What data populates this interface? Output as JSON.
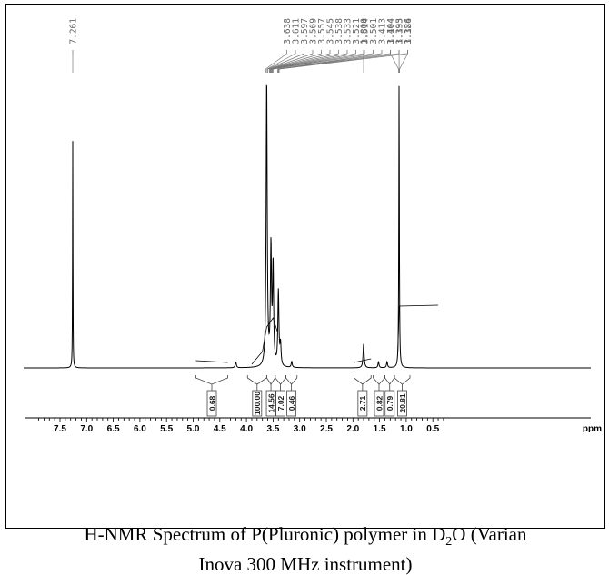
{
  "chart_data": {
    "type": "line",
    "title": "",
    "xlabel": "ppm",
    "x_reversed": true,
    "xlim": [
      0.25,
      7.95
    ],
    "x_ticks": [
      "7.5",
      "7.0",
      "6.5",
      "6.0",
      "5.5",
      "5.0",
      "4.5",
      "4.0",
      "3.5",
      "3.0",
      "2.5",
      "2.0",
      "1.5",
      "1.0",
      "0.5"
    ],
    "x_tick_values": [
      7.5,
      7.0,
      6.5,
      6.0,
      5.5,
      5.0,
      4.5,
      4.0,
      3.5,
      3.0,
      2.5,
      2.0,
      1.5,
      1.0,
      0.5
    ],
    "x_unit": "ppm",
    "peak_label_groups": [
      {
        "labels": [
          "7.261"
        ],
        "shifts": [
          7.261
        ]
      },
      {
        "labels": [
          "3.638",
          "3.611",
          "3.597",
          "3.569",
          "3.557",
          "3.545",
          "3.538",
          "3.533",
          "3.521",
          "3.514",
          "3.501",
          "3.413",
          "3.404",
          "3.395",
          "3.386"
        ],
        "shifts": [
          3.638,
          3.611,
          3.597,
          3.569,
          3.557,
          3.545,
          3.538,
          3.533,
          3.521,
          3.514,
          3.501,
          3.413,
          3.404,
          3.395,
          3.386
        ]
      },
      {
        "labels": [
          "1.800"
        ],
        "shifts": [
          1.8
        ]
      },
      {
        "labels": [
          "1.144",
          "1.133",
          "1.124"
        ],
        "shifts": [
          1.144,
          1.133,
          1.124
        ]
      }
    ],
    "peaks": [
      {
        "x": 7.261,
        "intensity": 0.76
      },
      {
        "x": 3.62,
        "intensity": 0.96
      },
      {
        "x": 3.54,
        "intensity": 0.39
      },
      {
        "x": 3.5,
        "intensity": 0.33
      },
      {
        "x": 3.4,
        "intensity": 0.25
      },
      {
        "x": 3.36,
        "intensity": 0.07
      },
      {
        "x": 4.2,
        "intensity": 0.02
      },
      {
        "x": 3.15,
        "intensity": 0.02
      },
      {
        "x": 1.8,
        "intensity": 0.08
      },
      {
        "x": 1.52,
        "intensity": 0.02
      },
      {
        "x": 1.36,
        "intensity": 0.02
      },
      {
        "x": 1.134,
        "intensity": 0.96
      }
    ],
    "integrals": [
      {
        "label": "0.68",
        "from": 4.95,
        "to": 4.35
      },
      {
        "label": "100.00",
        "from": 3.98,
        "to": 3.62
      },
      {
        "label": "14.56",
        "from": 3.62,
        "to": 3.46
      },
      {
        "label": "7.02",
        "from": 3.46,
        "to": 3.26
      },
      {
        "label": "0.46",
        "from": 3.26,
        "to": 3.05
      },
      {
        "label": "2.71",
        "from": 1.98,
        "to": 1.66
      },
      {
        "label": "0.82",
        "from": 1.62,
        "to": 1.4
      },
      {
        "label": "0.79",
        "from": 1.4,
        "to": 1.22
      },
      {
        "label": "20.81",
        "from": 1.22,
        "to": 0.93
      }
    ]
  },
  "caption": {
    "line1_before": "H-NMR Spectrum of P(Pluronic) polymer in D",
    "line1_sub": "2",
    "line1_after": "O (Varian",
    "line2": "Inova 300 MHz instrument)"
  }
}
